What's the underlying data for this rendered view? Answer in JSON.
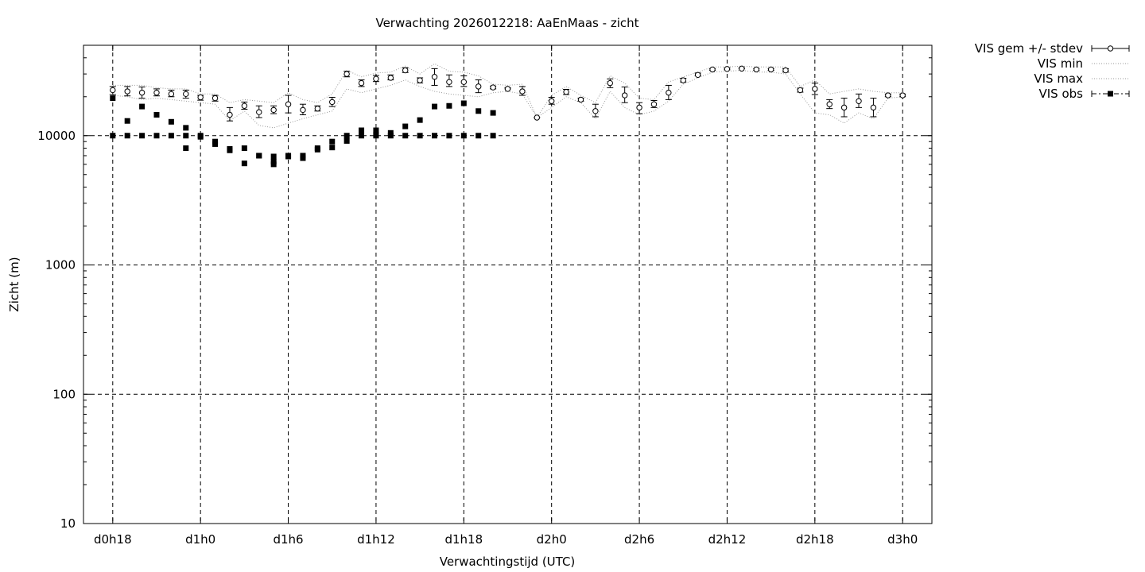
{
  "chart_data": {
    "type": "scatter",
    "title": "Verwachting 2026012218: AaEnMaas - zicht",
    "xlabel": "Verwachtingstijd (UTC)",
    "ylabel": "Zicht (m)",
    "yscale": "log",
    "ylim": [
      10,
      50000
    ],
    "xlim": [
      -2,
      56
    ],
    "x_unit": "hours since d0h18",
    "x_ticks": [
      {
        "x": 0,
        "label": "d0h18"
      },
      {
        "x": 6,
        "label": "d1h0"
      },
      {
        "x": 12,
        "label": "d1h6"
      },
      {
        "x": 18,
        "label": "d1h12"
      },
      {
        "x": 24,
        "label": "d1h18"
      },
      {
        "x": 30,
        "label": "d2h0"
      },
      {
        "x": 36,
        "label": "d2h6"
      },
      {
        "x": 42,
        "label": "d2h12"
      },
      {
        "x": 48,
        "label": "d2h18"
      },
      {
        "x": 54,
        "label": "d3h0"
      }
    ],
    "y_ticks": [
      {
        "y": 10,
        "label": "10"
      },
      {
        "y": 100,
        "label": "100"
      },
      {
        "y": 1000,
        "label": "1000"
      },
      {
        "y": 10000,
        "label": "10000"
      }
    ],
    "grid": true,
    "legend_position": "outside-top-right",
    "series": [
      {
        "name": "VIS gem +/- stdev",
        "style": "open-circle-errorbar",
        "x": [
          0,
          1,
          2,
          3,
          4,
          5,
          6,
          7,
          8,
          9,
          10,
          11,
          12,
          13,
          14,
          15,
          16,
          17,
          18,
          19,
          20,
          21,
          22,
          23,
          24,
          25,
          26,
          27,
          28,
          29,
          30,
          31,
          32,
          33,
          34,
          35,
          36,
          37,
          38,
          39,
          40,
          41,
          42,
          43,
          44,
          45,
          46,
          47,
          48,
          49,
          50,
          51,
          52,
          53,
          54
        ],
        "mean": [
          22500,
          22000,
          21500,
          21500,
          21000,
          21000,
          19800,
          19500,
          14500,
          17000,
          15200,
          15800,
          17500,
          15800,
          16200,
          18200,
          30000,
          25500,
          27500,
          28000,
          32000,
          26800,
          28500,
          26000,
          26000,
          24000,
          23600,
          23000,
          22000,
          13800,
          18500,
          21800,
          19000,
          15500,
          25500,
          20500,
          16500,
          17500,
          21500,
          26800,
          29500,
          32500,
          32800,
          33000,
          32500,
          32500,
          32000,
          22500,
          23000,
          17500,
          16500,
          18500,
          16500,
          20500,
          20500
        ],
        "err_low": [
          20800,
          20300,
          19500,
          20300,
          20000,
          19500,
          18800,
          18500,
          13000,
          16000,
          13800,
          14800,
          15000,
          14500,
          15500,
          16800,
          28500,
          24000,
          26200,
          27000,
          30800,
          25600,
          24500,
          24000,
          24000,
          21500,
          23000,
          23000,
          20500,
          13800,
          17500,
          20800,
          18500,
          14000,
          23500,
          18000,
          14800,
          16500,
          19000,
          26000,
          29000,
          32000,
          32300,
          33000,
          32000,
          32000,
          31000,
          21700,
          20800,
          16200,
          14000,
          16500,
          14000,
          20000,
          20000
        ],
        "err_high": [
          24000,
          24000,
          23800,
          23000,
          22500,
          22500,
          20500,
          20500,
          16500,
          18200,
          17000,
          17000,
          20500,
          17500,
          17000,
          19800,
          31500,
          27000,
          29200,
          29500,
          33500,
          28000,
          33000,
          29500,
          29000,
          27000,
          24200,
          23500,
          24000,
          13800,
          19800,
          22800,
          19500,
          17500,
          27500,
          23800,
          18000,
          18700,
          24500,
          27800,
          30500,
          33000,
          33300,
          33500,
          33000,
          33000,
          33000,
          23300,
          25500,
          19000,
          19500,
          21000,
          19500,
          21000,
          21000
        ]
      },
      {
        "name": "VIS min",
        "style": "dotted",
        "x": [
          0,
          1,
          2,
          3,
          4,
          5,
          6,
          7,
          8,
          9,
          10,
          11,
          12,
          13,
          14,
          15,
          16,
          17,
          18,
          19,
          20,
          21,
          22,
          23,
          24,
          25,
          26,
          27,
          28,
          29,
          30,
          31,
          32,
          33,
          34,
          35,
          36,
          37,
          38,
          39,
          40,
          41,
          42,
          43,
          44,
          45,
          46,
          47,
          48,
          49,
          50,
          51,
          52,
          53,
          54
        ],
        "values": [
          20500,
          20000,
          19000,
          19500,
          19000,
          18500,
          18000,
          17500,
          13000,
          15500,
          12000,
          11500,
          12500,
          13500,
          14500,
          15500,
          23000,
          21500,
          23000,
          24500,
          27000,
          24000,
          22000,
          21000,
          20500,
          20000,
          21500,
          22000,
          21000,
          13800,
          16500,
          20000,
          18000,
          13500,
          22000,
          16500,
          14500,
          15500,
          18500,
          25000,
          28000,
          31000,
          31500,
          32000,
          31000,
          31000,
          30000,
          21000,
          15000,
          14500,
          12500,
          15000,
          13500,
          19500,
          20000
        ]
      },
      {
        "name": "VIS max",
        "style": "dotted",
        "x": [
          0,
          1,
          2,
          3,
          4,
          5,
          6,
          7,
          8,
          9,
          10,
          11,
          12,
          13,
          14,
          15,
          16,
          17,
          18,
          19,
          20,
          21,
          22,
          23,
          24,
          25,
          26,
          27,
          28,
          29,
          30,
          31,
          32,
          33,
          34,
          35,
          36,
          37,
          38,
          39,
          40,
          41,
          42,
          43,
          44,
          45,
          46,
          47,
          48,
          49,
          50,
          51,
          52,
          53,
          54
        ],
        "values": [
          24500,
          24500,
          24500,
          23500,
          23000,
          23000,
          21000,
          21000,
          18000,
          19000,
          18500,
          18000,
          21500,
          19000,
          18000,
          21000,
          32000,
          28500,
          30500,
          31000,
          34500,
          30000,
          36000,
          31500,
          31000,
          29000,
          25000,
          24500,
          25000,
          13800,
          20500,
          24000,
          20500,
          18000,
          29000,
          25500,
          19500,
          19000,
          26000,
          28500,
          31000,
          34000,
          34000,
          34500,
          34000,
          34000,
          34000,
          24000,
          27000,
          21000,
          22000,
          23000,
          22000,
          21500,
          21500
        ]
      },
      {
        "name": "VIS obs",
        "style": "filled-square",
        "points": [
          [
            0,
            10000
          ],
          [
            0,
            19500
          ],
          [
            1,
            10000
          ],
          [
            1,
            13000
          ],
          [
            2,
            10000
          ],
          [
            2,
            16800
          ],
          [
            3,
            10000
          ],
          [
            3,
            14500
          ],
          [
            4,
            10000
          ],
          [
            4,
            12800
          ],
          [
            5,
            10000
          ],
          [
            5,
            11500
          ],
          [
            5,
            8000
          ],
          [
            6,
            10000
          ],
          [
            6,
            9800
          ],
          [
            7,
            9000
          ],
          [
            7,
            8600
          ],
          [
            8,
            7900
          ],
          [
            8,
            7700
          ],
          [
            9,
            8000
          ],
          [
            9,
            6100
          ],
          [
            10,
            7000
          ],
          [
            10,
            7000
          ],
          [
            11,
            6900
          ],
          [
            11,
            6300
          ],
          [
            11,
            6000
          ],
          [
            12,
            7000
          ],
          [
            12,
            6900
          ],
          [
            13,
            7000
          ],
          [
            13,
            6700
          ],
          [
            14,
            8000
          ],
          [
            14,
            7800
          ],
          [
            15,
            9000
          ],
          [
            15,
            8100
          ],
          [
            16,
            10000
          ],
          [
            16,
            9100
          ],
          [
            17,
            11000
          ],
          [
            17,
            10000
          ],
          [
            18,
            11000
          ],
          [
            18,
            10000
          ],
          [
            18,
            10200
          ],
          [
            19,
            10500
          ],
          [
            19,
            10000
          ],
          [
            20,
            11800
          ],
          [
            20,
            10000
          ],
          [
            21,
            13200
          ],
          [
            21,
            10000
          ],
          [
            22,
            16800
          ],
          [
            22,
            10000
          ],
          [
            23,
            17000
          ],
          [
            23,
            10000
          ],
          [
            24,
            17800
          ],
          [
            24,
            10000
          ],
          [
            25,
            15500
          ],
          [
            25,
            10000
          ],
          [
            26,
            15000
          ],
          [
            26,
            10000
          ]
        ]
      }
    ]
  }
}
